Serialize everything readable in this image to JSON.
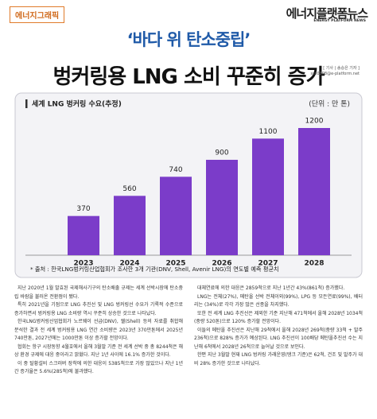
{
  "header": {
    "section": "에너지그래픽",
    "logo": "에너지플랫폼뉴스",
    "logo_sub": "ENERGY PLATFORM NEWS"
  },
  "headline": {
    "kicker": "‘바다 위 탄소중립’",
    "title": "벙커링용 LNG 소비 꾸준히 증가",
    "byline": "[ 기사 | 송승은 기자 ]",
    "email": "sss0808@e-platform.net"
  },
  "chart_data": {
    "type": "bar",
    "title": "세계 LNG 벙커링 수요(추정)",
    "unit": "(단위 : 만 톤)",
    "categories": [
      "2023",
      "2024",
      "2025",
      "2026",
      "2027",
      "2028"
    ],
    "values": [
      370,
      560,
      740,
      900,
      1100,
      1200
    ],
    "color": "#7b3cc9",
    "ylim": [
      0,
      1350
    ],
    "source": "* 출처 : 한국LNG벙커링산업협회가 조사한 3개 기관(DNV, Shell, Avenir LNG)의 연도별 예측 평균치"
  },
  "article": {
    "columns": [
      [
        "지난 2020년 1월 발효된 국제해사기구의 탄소배출 규제는 세계 선박시장에 탄소중립 바람을 불러온 전환점이 됐다.",
        "특히 2021년을 기점으로 LNG 추진선 및 LNG 벙커링선 수요가 기록적 수준으로 증가하면서 벙커링용 LNG 소비량 역시 꾸준히 상승한 것으로 나타났다.",
        "한국LNG벙커링산업협회가 노르웨이 선급(DNV), 쉘(Shell) 등의 자료를 취합해 분석한 결과 전 세계 벙커링용 LNG 연간 소비량은 2023년 370만톤에서 2025년 740만톤, 2027년에는 1000만톤 이상 증가할 전망이다.",
        "협회는 항구 시장동향 4월호에서 올해 3월말 기준 전 세계 선박 중 총 8244척은 해상 환경 규제에 대응 중이라고 밝혔다. 지난 1년 사이에 16.1% 증가한 것이다.",
        "이 중 탈황설비 스크러버 장착에 의한 대응이 5385척으로 가장 많았으나 지난 1년간 증가율은 5.6%(285척)에 불과했다."
      ],
      [
        "대체연료에 의한 대응은 2859척으로 지난 1년간 43%(861척) 증가했다.",
        "LNG는 전체(27%), 메탄올 선박 전체이외(99%), LPG 등 모든연료(99%), 배터리는 (34%)로 각각 가장 많은 선종을 차지했다.",
        "또한 전 세계 LNG 추진선은 제외한 기준 지난해 471척에서 올해 2028년 1034척(중량 520톤)으로 120% 증가할 전망이다.",
        "이들의 메탄올 추진선은 지난해 29척에서 올해 2028년 269척(중량 33척 + 발주 236척)으로 828% 증가가 예상된다. LNG 추진선이 100배당 메탄올추진선 수는 지난해 6척에서 2028년 26척으로 늘어날 것으로 보인다.",
        "한편 지난 3월말 현재 LNG 벙커링 가래운영(탱크 기준)은 62척, 건조 및 발주가 대비 28% 증가한 것으로 나타났다."
      ]
    ]
  }
}
